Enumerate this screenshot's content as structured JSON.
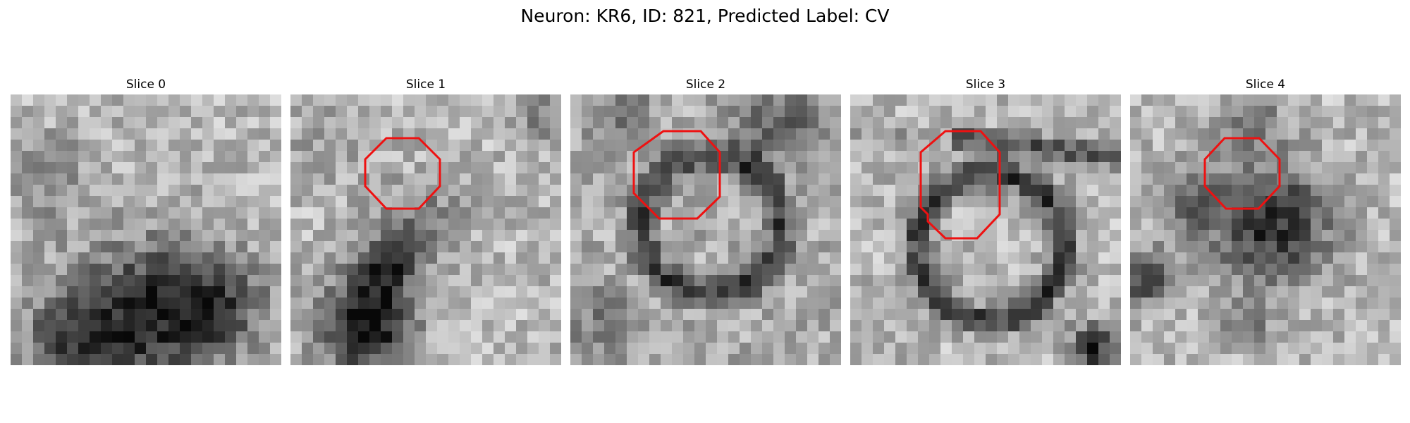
{
  "figure": {
    "title": "Neuron: KR6, ID: 821, Predicted Label: CV"
  },
  "overlay_color": "#ee1111",
  "panels": [
    {
      "title": "Slice 0",
      "has_contour": false
    },
    {
      "title": "Slice 1",
      "has_contour": true
    },
    {
      "title": "Slice 2",
      "has_contour": true
    },
    {
      "title": "Slice 3",
      "has_contour": true
    },
    {
      "title": "Slice 4",
      "has_contour": true
    }
  ]
}
